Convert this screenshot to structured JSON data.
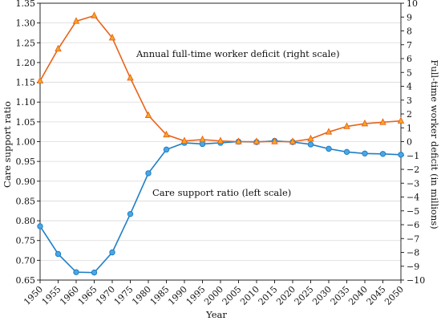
{
  "chart_data": {
    "type": "line",
    "x": [
      1950,
      1955,
      1960,
      1965,
      1970,
      1975,
      1980,
      1985,
      1990,
      1995,
      2000,
      2005,
      2010,
      2015,
      2020,
      2025,
      2030,
      2035,
      2040,
      2045,
      2050
    ],
    "x_tick_labels": [
      "1950",
      "1955",
      "1960",
      "1965",
      "1970",
      "1975",
      "1980",
      "1985",
      "1990",
      "1995",
      "2000",
      "2005",
      "2010",
      "2015",
      "2020",
      "2025",
      "2030",
      "2035",
      "2040",
      "2045",
      "2050"
    ],
    "xlabel": "Year",
    "ylabel_left": "Care support ratio",
    "ylabel_right": "Full-time worker deficit (in millions)",
    "ylim_left": [
      0.65,
      1.35
    ],
    "ylim_right": [
      -10,
      10
    ],
    "left_ticks": [
      "0.65",
      "0.70",
      "0.75",
      "0.80",
      "0.85",
      "0.90",
      "0.95",
      "1.00",
      "1.05",
      "1.10",
      "1.15",
      "1.20",
      "1.25",
      "1.30",
      "1.35"
    ],
    "right_ticks": [
      "−10",
      "−9",
      "−8",
      "−7",
      "−6",
      "−5",
      "−4",
      "−3",
      "−2",
      "−1",
      "0",
      "1",
      "2",
      "3",
      "4",
      "5",
      "6",
      "7",
      "8",
      "9",
      "10"
    ],
    "grid": "horizontal",
    "series": [
      {
        "name": "Care support ratio (left scale)",
        "axis": "left",
        "marker": "circle",
        "color": "#1f7fc4",
        "marker_fill": "#4ba6e6",
        "values": [
          0.786,
          0.716,
          0.67,
          0.669,
          0.72,
          0.817,
          0.92,
          0.98,
          0.997,
          0.994,
          0.997,
          1.0,
          0.999,
          1.002,
          0.999,
          0.993,
          0.982,
          0.974,
          0.97,
          0.969,
          0.967
        ]
      },
      {
        "name": "Annual full-time worker deficit (right scale)",
        "axis": "right",
        "marker": "triangle",
        "color": "#e8631a",
        "marker_fill": "#f5a623",
        "values": [
          4.4,
          6.7,
          8.7,
          9.1,
          7.5,
          4.6,
          1.9,
          0.5,
          0.05,
          0.15,
          0.05,
          0.0,
          0.0,
          0.0,
          0.0,
          0.2,
          0.7,
          1.1,
          1.3,
          1.4,
          1.5
        ]
      }
    ]
  }
}
